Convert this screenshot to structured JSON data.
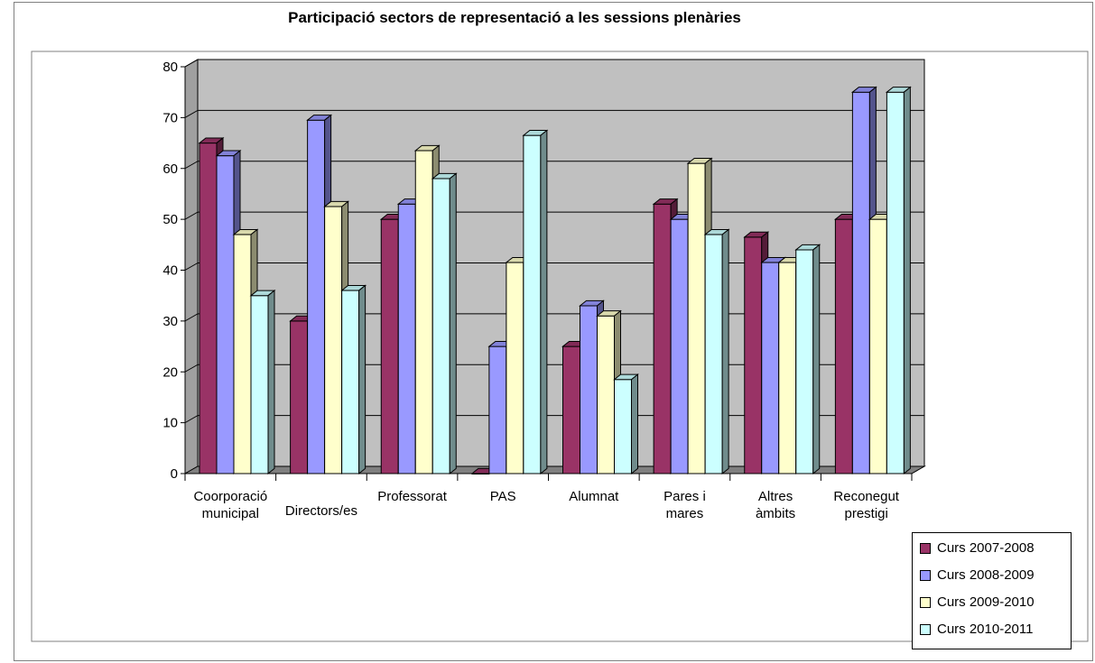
{
  "chart_data": {
    "type": "bar",
    "title": "Participació sectors de representació a les sessions plenàries",
    "categories": [
      [
        "Coorporació",
        "municipal"
      ],
      [
        "Directors/es"
      ],
      [
        "Professorat"
      ],
      [
        "PAS"
      ],
      [
        "Alumnat"
      ],
      [
        "Pares i",
        "mares"
      ],
      [
        "Altres",
        "àmbits"
      ],
      [
        "Reconegut",
        "prestigi"
      ]
    ],
    "series": [
      {
        "name": "Curs 2007-2008",
        "color": "#993366",
        "values": [
          65,
          30,
          50,
          0,
          25,
          53,
          46.5,
          50
        ]
      },
      {
        "name": "Curs 2008-2009",
        "color": "#9999FF",
        "values": [
          62.5,
          69.5,
          53,
          25,
          33,
          50,
          41.5,
          75
        ]
      },
      {
        "name": "Curs 2009-2010",
        "color": "#FFFFCC",
        "values": [
          47,
          52.5,
          63.5,
          41.5,
          31,
          61,
          41.5,
          50
        ]
      },
      {
        "name": "Curs 2010-2011",
        "color": "#CCFFFF",
        "values": [
          35,
          36,
          58,
          66.5,
          18.5,
          47,
          44,
          75
        ]
      }
    ],
    "ylim": [
      0,
      80
    ],
    "yticks": [
      0,
      10,
      20,
      30,
      40,
      50,
      60,
      70,
      80
    ],
    "xlabel": "",
    "ylabel": "",
    "grid": true,
    "legend_position": "bottom-right",
    "wall_color": "#C0C0C0",
    "floor_color": "#808080"
  }
}
